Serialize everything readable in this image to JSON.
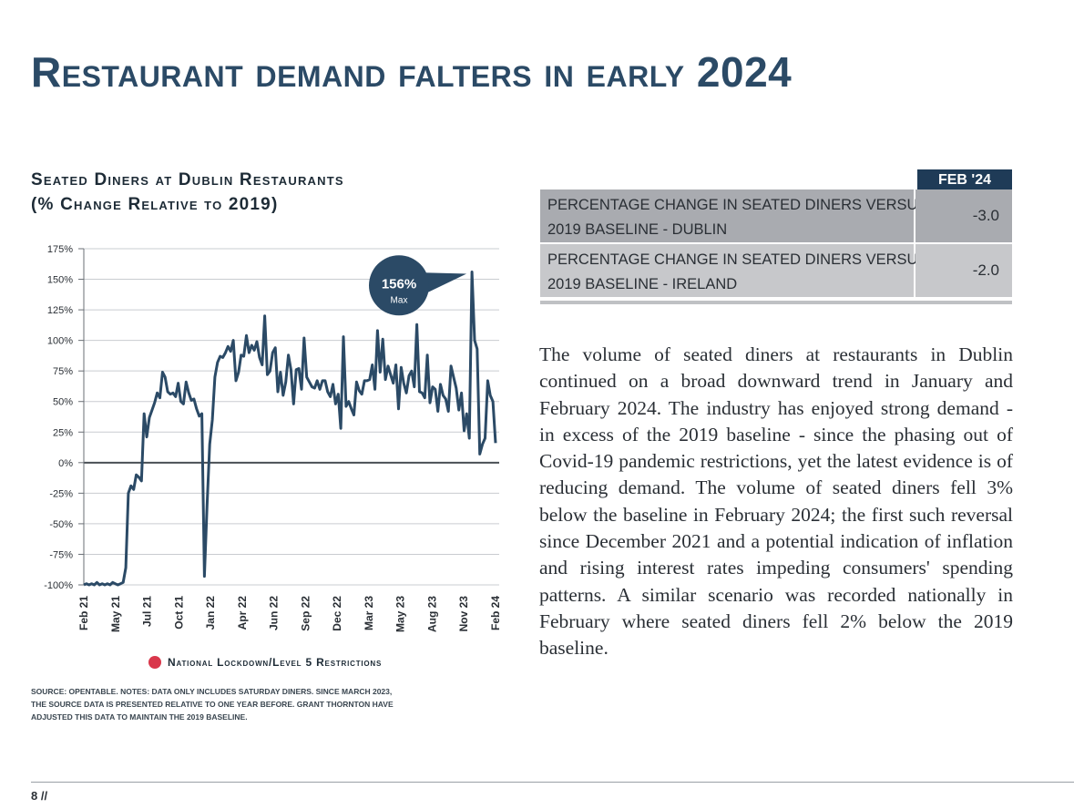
{
  "page_title": "Restaurant demand falters in early 2024",
  "chart_heading": {
    "line1": "Seated Diners at Dublin Restaurants",
    "line2": "(% Change Relative to 2019)"
  },
  "chart_data": {
    "type": "line",
    "title": "Seated Diners at Dublin Restaurants (% Change Relative to 2019)",
    "y_ticks": [
      "175%",
      "150%",
      "125%",
      "100%",
      "75%",
      "50%",
      "25%",
      "0%",
      "-25%",
      "-50%",
      "-75%",
      "-100%"
    ],
    "ylim": [
      -100,
      175
    ],
    "x_ticks": [
      "Feb 21",
      "May 21",
      "Jul 21",
      "Oct 21",
      "Jan 22",
      "Apr 22",
      "Jun 22",
      "Sep 22",
      "Dec 22",
      "Mar 23",
      "May 23",
      "Aug 23",
      "Nov 23",
      "Feb 24"
    ],
    "grid": "horizontal",
    "series": [
      {
        "color": "#2b4a66",
        "values": [
          -100,
          -99,
          -100,
          -99,
          -100,
          -98,
          -100,
          -99,
          -100,
          -99,
          -100,
          -98,
          -99,
          -100,
          -99,
          -98,
          -86,
          -25,
          -19,
          -22,
          -10,
          -12,
          -15,
          40,
          21,
          37,
          43,
          49,
          57,
          53,
          74,
          70,
          58,
          56,
          57,
          54,
          65,
          50,
          48,
          66,
          57,
          51,
          52,
          44,
          38,
          40,
          -93,
          -35,
          15,
          35,
          70,
          82,
          87,
          86,
          90,
          95,
          91,
          100,
          67,
          74,
          88,
          87,
          104,
          90,
          96,
          92,
          99,
          86,
          80,
          120,
          72,
          75,
          90,
          94,
          58,
          74,
          55,
          66,
          88,
          76,
          48,
          76,
          77,
          60,
          102,
          70,
          66,
          62,
          61,
          67,
          60,
          67,
          67,
          58,
          54,
          64,
          48,
          56,
          28,
          103,
          46,
          50,
          44,
          39,
          66,
          59,
          56,
          67,
          67,
          68,
          80,
          60,
          108,
          74,
          101,
          68,
          79,
          72,
          65,
          80,
          44,
          78,
          65,
          57,
          71,
          75,
          62,
          113,
          58,
          57,
          53,
          88,
          49,
          62,
          60,
          42,
          64,
          55,
          52,
          42,
          79,
          70,
          61,
          43,
          57,
          26,
          40,
          20,
          156,
          100,
          93,
          7,
          15,
          20,
          67,
          55,
          50,
          16
        ]
      }
    ],
    "annotation": {
      "value_label": "156%",
      "sub_label": "Max",
      "at_value": 156
    }
  },
  "legend": {
    "label": "National Lockdown/Level 5 Restrictions",
    "color": "#d9374b"
  },
  "source_note": {
    "line1": "Source: OpenTable. Notes: Data only includes Saturday diners. Since March 2023,",
    "line2": "the source data is presented relative to one year before. Grant Thornton have",
    "line3": "adjusted this data to maintain the 2019 baseline."
  },
  "table": {
    "header": "FEB '24",
    "rows": [
      {
        "label_line1": "Percentage change in seated diners versus",
        "label_line2": "2019 baseline - Dublin",
        "value": "-3.0"
      },
      {
        "label_line1": "Percentage change in seated diners versus",
        "label_line2": "2019 baseline - Ireland",
        "value": "-2.0"
      }
    ]
  },
  "body_text": "The volume of seated diners at restaurants in Dublin continued on a broad downward trend in January and February 2024. The industry has enjoyed strong demand - in excess of the 2019 baseline - since the phasing out of Covid-19 pandemic restrictions, yet the latest evidence is of reducing demand. The volume of seated diners fell 3% below the baseline in February 2024; the first such reversal since December 2021 and a potential indication of inflation and rising interest rates impeding consumers' spending patterns. A similar scenario was recorded nationally in February where seated diners fell 2% below the 2019 baseline.",
  "page_number": "8 //",
  "colors": {
    "title": "#2b4a66",
    "table_header": "#1f3b57",
    "line": "#2b4a66",
    "lockdown": "#d9374b"
  }
}
